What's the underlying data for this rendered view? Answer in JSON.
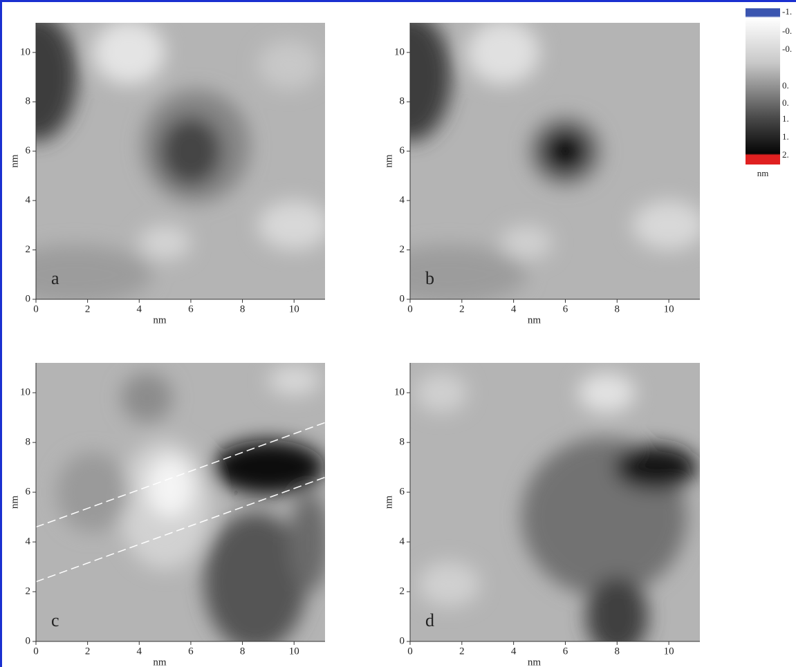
{
  "chart_data": [
    {
      "type": "heatmap",
      "panel": "a",
      "xlabel": "nm",
      "ylabel": "nm",
      "xlim": [
        0,
        11.2
      ],
      "ylim": [
        0,
        11.2
      ],
      "xticks": [
        0,
        2,
        4,
        6,
        8,
        10
      ],
      "yticks": [
        0,
        2,
        4,
        6,
        8,
        10
      ]
    },
    {
      "type": "heatmap",
      "panel": "b",
      "xlabel": "nm",
      "ylabel": "nm",
      "xlim": [
        0,
        11.2
      ],
      "ylim": [
        0,
        11.2
      ],
      "xticks": [
        0,
        2,
        4,
        6,
        8,
        10
      ],
      "yticks": [
        0,
        2,
        4,
        6,
        8,
        10
      ]
    },
    {
      "type": "heatmap",
      "panel": "c",
      "xlabel": "nm",
      "ylabel": "nm",
      "xlim": [
        0,
        11.2
      ],
      "ylim": [
        0,
        11.2
      ],
      "xticks": [
        0,
        2,
        4,
        6,
        8,
        10
      ],
      "yticks": [
        0,
        2,
        4,
        6,
        8,
        10
      ]
    },
    {
      "type": "heatmap",
      "panel": "d",
      "xlabel": "nm",
      "ylabel": "nm",
      "xlim": [
        0,
        11.2
      ],
      "ylim": [
        0,
        11.2
      ],
      "xticks": [
        0,
        2,
        4,
        6,
        8,
        10
      ],
      "yticks": [
        0,
        2,
        4,
        6,
        8,
        10
      ]
    }
  ],
  "colorbar": {
    "labels": [
      "-1.",
      "-0.",
      "-0.",
      "0.",
      "0.",
      "1.",
      "1.",
      "2."
    ],
    "unit": "nm"
  }
}
